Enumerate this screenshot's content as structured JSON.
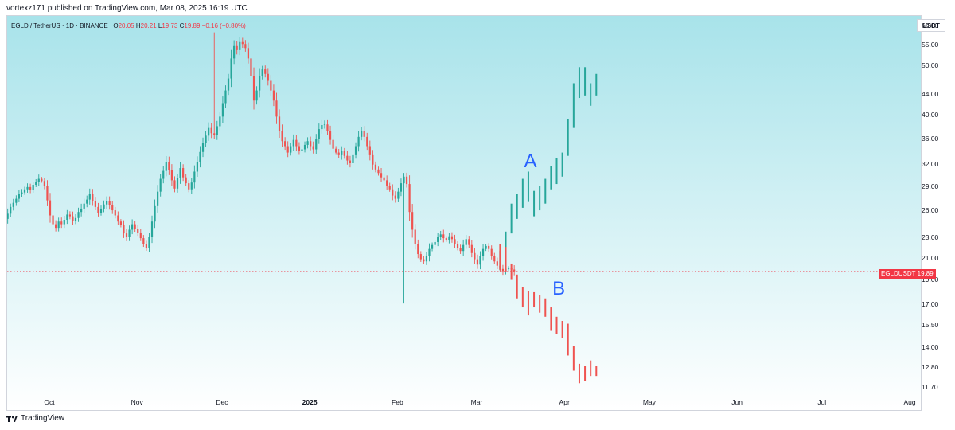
{
  "header": {
    "published": "vortexz171 published on TradingView.com, Mar 08, 2025 16:19 UTC"
  },
  "symbol": {
    "name": "EGLD / TetherUS · 1D · BINANCE",
    "o_label": "O",
    "o": "20.05",
    "h_label": "H",
    "h": "20.21",
    "l_label": "L",
    "l": "19.73",
    "c_label": "C",
    "c": "19.89",
    "change": "−0.16 (−0.80%)"
  },
  "currency": "USDT",
  "price_tag": {
    "symbol": "EGLDUSDT",
    "value": "19.89"
  },
  "branding": "TradingView",
  "colors": {
    "up": "#26a69a",
    "down": "#ef5350",
    "bg_top": "#a8e3ea",
    "bg_bottom": "#ffffff"
  },
  "chart_data": {
    "type": "candlestick",
    "scale": "log",
    "ylim": [
      11.3,
      63
    ],
    "y_ticks": [
      "60.00",
      "55.00",
      "50.00",
      "44.00",
      "40.00",
      "36.00",
      "32.00",
      "29.00",
      "26.00",
      "23.00",
      "21.00",
      "19.00",
      "17.00",
      "15.50",
      "14.00",
      "12.80",
      "11.70"
    ],
    "x_ticks": [
      {
        "label": "Oct",
        "date": "2024-10-01",
        "bold": false
      },
      {
        "label": "Nov",
        "date": "2024-11-01",
        "bold": false
      },
      {
        "label": "Dec",
        "date": "2024-12-01",
        "bold": false
      },
      {
        "label": "2025",
        "date": "2025-01-01",
        "bold": true
      },
      {
        "label": "Feb",
        "date": "2025-02-01",
        "bold": false
      },
      {
        "label": "Mar",
        "date": "2025-03-01",
        "bold": false
      },
      {
        "label": "Apr",
        "date": "2025-04-01",
        "bold": false
      },
      {
        "label": "May",
        "date": "2025-05-01",
        "bold": false
      },
      {
        "label": "Jun",
        "date": "2025-06-01",
        "bold": false
      },
      {
        "label": "Jul",
        "date": "2025-07-01",
        "bold": false
      },
      {
        "label": "Aug",
        "date": "2025-08-01",
        "bold": false
      }
    ],
    "last_price": 19.89,
    "history": {
      "start": "2024-09-15",
      "close": [
        25.2,
        25.8,
        26.6,
        27.1,
        27.6,
        28.2,
        28.4,
        28.8,
        29.1,
        28.7,
        29.4,
        29.8,
        30.2,
        29.9,
        29.2,
        27.4,
        25.6,
        24.6,
        24.2,
        24.9,
        24.6,
        25.1,
        25.7,
        25.5,
        25.0,
        25.3,
        26.0,
        26.4,
        27.0,
        27.5,
        28.2,
        27.3,
        26.6,
        25.9,
        26.4,
        26.9,
        27.3,
        26.8,
        26.2,
        25.6,
        24.9,
        24.5,
        23.6,
        23.2,
        24.0,
        24.6,
        24.1,
        23.7,
        23.1,
        22.5,
        22.1,
        23.2,
        24.9,
        26.7,
        28.5,
        30.2,
        31.3,
        32.6,
        31.4,
        30.0,
        28.9,
        30.3,
        31.7,
        30.4,
        29.6,
        28.8,
        29.7,
        31.2,
        32.6,
        34.1,
        35.5,
        36.7,
        38.0,
        37.1,
        36.8,
        38.3,
        40.0,
        42.5,
        45.0,
        47.5,
        52.0,
        55.0,
        54.0,
        56.0,
        55.5,
        54.5,
        52.0,
        48.0,
        43.0,
        45.0,
        48.0,
        49.5,
        48.5,
        47.0,
        45.0,
        43.0,
        40.0,
        37.5,
        35.8,
        35.0,
        34.0,
        35.0,
        36.0,
        35.0,
        34.2,
        34.5,
        35.2,
        35.8,
        35.0,
        34.5,
        36.2,
        37.8,
        38.5,
        38.6,
        37.5,
        36.0,
        34.6,
        34.0,
        33.6,
        34.2,
        33.5,
        32.8,
        32.4,
        33.6,
        35.0,
        36.5,
        37.5,
        36.5,
        35.0,
        33.6,
        32.2,
        31.5,
        31.0,
        30.4,
        30.0,
        29.3,
        28.8,
        28.0,
        27.6,
        28.5,
        29.6,
        30.5,
        29.5,
        26.0,
        24.0,
        22.5,
        21.5,
        21.0,
        20.8,
        21.3,
        22.0,
        22.4,
        22.7,
        23.2,
        23.5,
        23.1,
        22.9,
        23.3,
        23.0,
        22.5,
        22.1,
        21.8,
        22.4,
        23.0,
        22.4,
        21.6,
        21.0,
        20.5,
        21.3,
        22.0,
        22.3,
        22.0,
        21.3,
        20.8,
        20.4,
        20.1,
        19.9,
        20.1,
        20.2,
        20.05,
        19.89
      ]
    },
    "scenario_a": [
      {
        "date": "2025-03-09",
        "low": 20.0,
        "high": 21.8
      },
      {
        "date": "2025-03-11",
        "low": 21.0,
        "high": 23.8
      },
      {
        "date": "2025-03-13",
        "low": 23.6,
        "high": 27.0
      },
      {
        "date": "2025-03-15",
        "low": 25.2,
        "high": 28.2
      },
      {
        "date": "2025-03-17",
        "low": 26.5,
        "high": 30.2
      },
      {
        "date": "2025-03-19",
        "low": 27.2,
        "high": 31.2
      },
      {
        "date": "2025-03-21",
        "low": 25.5,
        "high": 28.6
      },
      {
        "date": "2025-03-23",
        "low": 26.2,
        "high": 29.2
      },
      {
        "date": "2025-03-25",
        "low": 27.0,
        "high": 30.2
      },
      {
        "date": "2025-03-27",
        "low": 28.8,
        "high": 32.0
      },
      {
        "date": "2025-03-29",
        "low": 29.5,
        "high": 33.2
      },
      {
        "date": "2025-03-31",
        "low": 30.5,
        "high": 34.0
      },
      {
        "date": "2025-04-02",
        "low": 33.5,
        "high": 39.5
      },
      {
        "date": "2025-04-04",
        "low": 38.0,
        "high": 46.5
      },
      {
        "date": "2025-04-06",
        "low": 43.5,
        "high": 50.0
      },
      {
        "date": "2025-04-08",
        "low": 44.0,
        "high": 50.0
      },
      {
        "date": "2025-04-10",
        "low": 42.0,
        "high": 46.5
      },
      {
        "date": "2025-04-12",
        "low": 44.0,
        "high": 48.5
      }
    ],
    "scenario_b": [
      {
        "date": "2025-03-09",
        "low": 20.0,
        "high": 22.5
      },
      {
        "date": "2025-03-11",
        "low": 19.8,
        "high": 22.2
      },
      {
        "date": "2025-03-13",
        "low": 19.2,
        "high": 20.6
      },
      {
        "date": "2025-03-15",
        "low": 17.6,
        "high": 19.6
      },
      {
        "date": "2025-03-17",
        "low": 16.9,
        "high": 18.5
      },
      {
        "date": "2025-03-19",
        "low": 16.3,
        "high": 18.2
      },
      {
        "date": "2025-03-21",
        "low": 16.9,
        "high": 18.1
      },
      {
        "date": "2025-03-23",
        "low": 16.5,
        "high": 17.9
      },
      {
        "date": "2025-03-25",
        "low": 16.2,
        "high": 17.6
      },
      {
        "date": "2025-03-27",
        "low": 15.2,
        "high": 16.9
      },
      {
        "date": "2025-03-29",
        "low": 15.0,
        "high": 16.2
      },
      {
        "date": "2025-03-31",
        "low": 14.7,
        "high": 15.9
      },
      {
        "date": "2025-04-02",
        "low": 13.6,
        "high": 15.7
      },
      {
        "date": "2025-04-04",
        "low": 12.7,
        "high": 14.2
      },
      {
        "date": "2025-04-06",
        "low": 12.0,
        "high": 13.1
      },
      {
        "date": "2025-04-08",
        "low": 12.1,
        "high": 13.0
      },
      {
        "date": "2025-04-10",
        "low": 12.4,
        "high": 13.3
      },
      {
        "date": "2025-04-12",
        "low": 12.4,
        "high": 13.0
      }
    ],
    "annotations": [
      {
        "text": "A",
        "date": "2025-03-20",
        "value": 32.5
      },
      {
        "text": "B",
        "date": "2025-03-30",
        "value": 18.3
      }
    ]
  }
}
